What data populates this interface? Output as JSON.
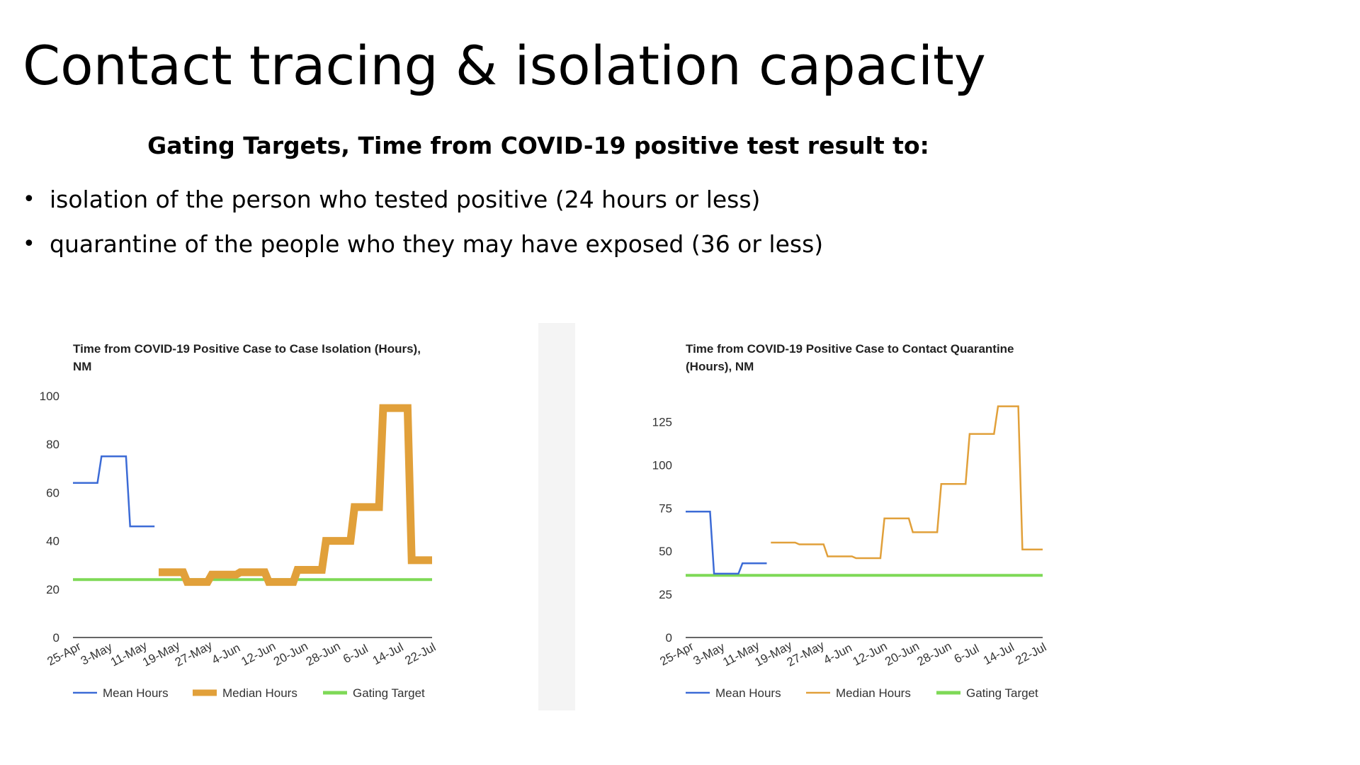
{
  "slide": {
    "title": "Contact tracing & isolation capacity",
    "subtitle": "Gating Targets, Time from COVID-19 positive test result to:",
    "bullets": [
      "isolation of the person who tested positive (24 hours or less)",
      "quarantine of the people who they may have exposed (36 or less)"
    ]
  },
  "colors": {
    "mean": "#3c6bd6",
    "median": "#e1a03a",
    "target": "#7ed957",
    "axis": "#333333"
  },
  "chart_data": [
    {
      "type": "line",
      "title": "Time from COVID-19 Positive Case to Case Isolation (Hours), NM",
      "x_tick_labels": [
        "25-Apr",
        "3-May",
        "11-May",
        "19-May",
        "27-May",
        "4-Jun",
        "12-Jun",
        "20-Jun",
        "28-Jun",
        "6-Jul",
        "14-Jul",
        "22-Jul"
      ],
      "x_range": [
        0,
        88
      ],
      "ylim": [
        0,
        100
      ],
      "y_ticks": [
        0,
        20,
        40,
        60,
        80,
        100
      ],
      "legend_position": "bottom",
      "series": [
        {
          "name": "Mean Hours",
          "style": "thin",
          "points": [
            [
              0,
              64
            ],
            [
              6,
              64
            ],
            [
              7,
              75
            ],
            [
              13,
              75
            ],
            [
              14,
              46
            ],
            [
              20,
              46
            ]
          ]
        },
        {
          "name": "Median Hours",
          "style": "thick",
          "points": [
            [
              21,
              27
            ],
            [
              27,
              27
            ],
            [
              28,
              23
            ],
            [
              33,
              23
            ],
            [
              34,
              26
            ],
            [
              40,
              26
            ],
            [
              41,
              27
            ],
            [
              47,
              27
            ],
            [
              48,
              23
            ],
            [
              54,
              23
            ],
            [
              55,
              28
            ],
            [
              61,
              28
            ],
            [
              62,
              40
            ],
            [
              68,
              40
            ],
            [
              69,
              54
            ],
            [
              75,
              54
            ],
            [
              76,
              95
            ],
            [
              82,
              95
            ],
            [
              83,
              32
            ],
            [
              88,
              32
            ]
          ]
        },
        {
          "name": "Gating Target",
          "style": "target",
          "points": [
            [
              0,
              24
            ],
            [
              88,
              24
            ]
          ]
        }
      ]
    },
    {
      "type": "line",
      "title": "Time from COVID-19 Positive Case to Contact Quarantine (Hours), NM",
      "x_tick_labels": [
        "25-Apr",
        "3-May",
        "11-May",
        "19-May",
        "27-May",
        "4-Jun",
        "12-Jun",
        "20-Jun",
        "28-Jun",
        "6-Jul",
        "14-Jul",
        "22-Jul"
      ],
      "x_range": [
        0,
        88
      ],
      "ylim": [
        0,
        140
      ],
      "y_ticks": [
        0,
        25,
        50,
        75,
        100,
        125
      ],
      "legend_position": "bottom",
      "series": [
        {
          "name": "Mean Hours",
          "style": "thin",
          "points": [
            [
              0,
              73
            ],
            [
              6,
              73
            ],
            [
              7,
              37
            ],
            [
              13,
              37
            ],
            [
              14,
              43
            ],
            [
              20,
              43
            ]
          ]
        },
        {
          "name": "Median Hours",
          "style": "thin",
          "points": [
            [
              21,
              55
            ],
            [
              27,
              55
            ],
            [
              28,
              54
            ],
            [
              34,
              54
            ],
            [
              35,
              47
            ],
            [
              41,
              47
            ],
            [
              42,
              46
            ],
            [
              48,
              46
            ],
            [
              49,
              69
            ],
            [
              55,
              69
            ],
            [
              56,
              61
            ],
            [
              62,
              61
            ],
            [
              63,
              89
            ],
            [
              69,
              89
            ],
            [
              70,
              118
            ],
            [
              76,
              118
            ],
            [
              77,
              134
            ],
            [
              82,
              134
            ],
            [
              83,
              51
            ],
            [
              88,
              51
            ]
          ]
        },
        {
          "name": "Gating Target",
          "style": "target",
          "points": [
            [
              0,
              36
            ],
            [
              88,
              36
            ]
          ]
        }
      ]
    }
  ]
}
